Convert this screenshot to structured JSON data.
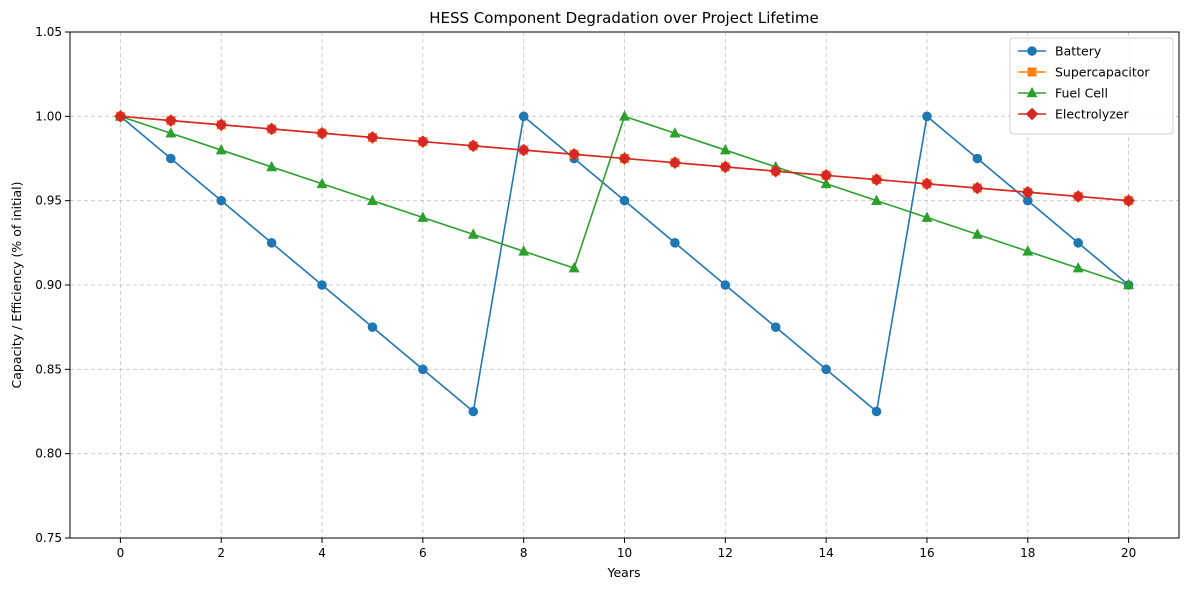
{
  "chart_data": {
    "type": "line",
    "title": "HESS Component Degradation over Project Lifetime",
    "xlabel": "Years",
    "ylabel": "Capacity / Efficiency (% of initial)",
    "xlim": [
      -1,
      21
    ],
    "ylim": [
      0.75,
      1.05
    ],
    "xticks": [
      0,
      2,
      4,
      6,
      8,
      10,
      12,
      14,
      16,
      18,
      20
    ],
    "yticks": [
      0.75,
      0.8,
      0.85,
      0.9,
      0.95,
      1.0,
      1.05
    ],
    "grid": true,
    "legend_position": "top-right",
    "x": [
      0,
      1,
      2,
      3,
      4,
      5,
      6,
      7,
      8,
      9,
      10,
      11,
      12,
      13,
      14,
      15,
      16,
      17,
      18,
      19,
      20
    ],
    "series": [
      {
        "name": "Battery",
        "color": "#1f77b4",
        "marker": "circle",
        "values": [
          1.0,
          0.975,
          0.95,
          0.925,
          0.9,
          0.875,
          0.85,
          0.825,
          1.0,
          0.975,
          0.95,
          0.925,
          0.9,
          0.875,
          0.85,
          0.825,
          1.0,
          0.975,
          0.95,
          0.925,
          0.9
        ]
      },
      {
        "name": "Supercapacitor",
        "color": "#ff7f0e",
        "marker": "square",
        "values": [
          1.0,
          0.9975,
          0.995,
          0.9925,
          0.99,
          0.9875,
          0.985,
          0.9825,
          0.98,
          0.9775,
          0.975,
          0.9725,
          0.97,
          0.9675,
          0.965,
          0.9625,
          0.96,
          0.9575,
          0.955,
          0.9525,
          0.95
        ]
      },
      {
        "name": "Fuel Cell",
        "color": "#2ca02c",
        "marker": "triangle",
        "values": [
          1.0,
          0.99,
          0.98,
          0.97,
          0.96,
          0.95,
          0.94,
          0.93,
          0.92,
          0.91,
          1.0,
          0.99,
          0.98,
          0.97,
          0.96,
          0.95,
          0.94,
          0.93,
          0.92,
          0.91,
          0.9
        ]
      },
      {
        "name": "Electrolyzer",
        "color": "#d62728",
        "marker": "diamond",
        "values": [
          1.0,
          0.9975,
          0.995,
          0.9925,
          0.99,
          0.9875,
          0.985,
          0.9825,
          0.98,
          0.9775,
          0.975,
          0.9725,
          0.97,
          0.9675,
          0.965,
          0.9625,
          0.96,
          0.9575,
          0.955,
          0.9525,
          0.95
        ]
      }
    ]
  }
}
